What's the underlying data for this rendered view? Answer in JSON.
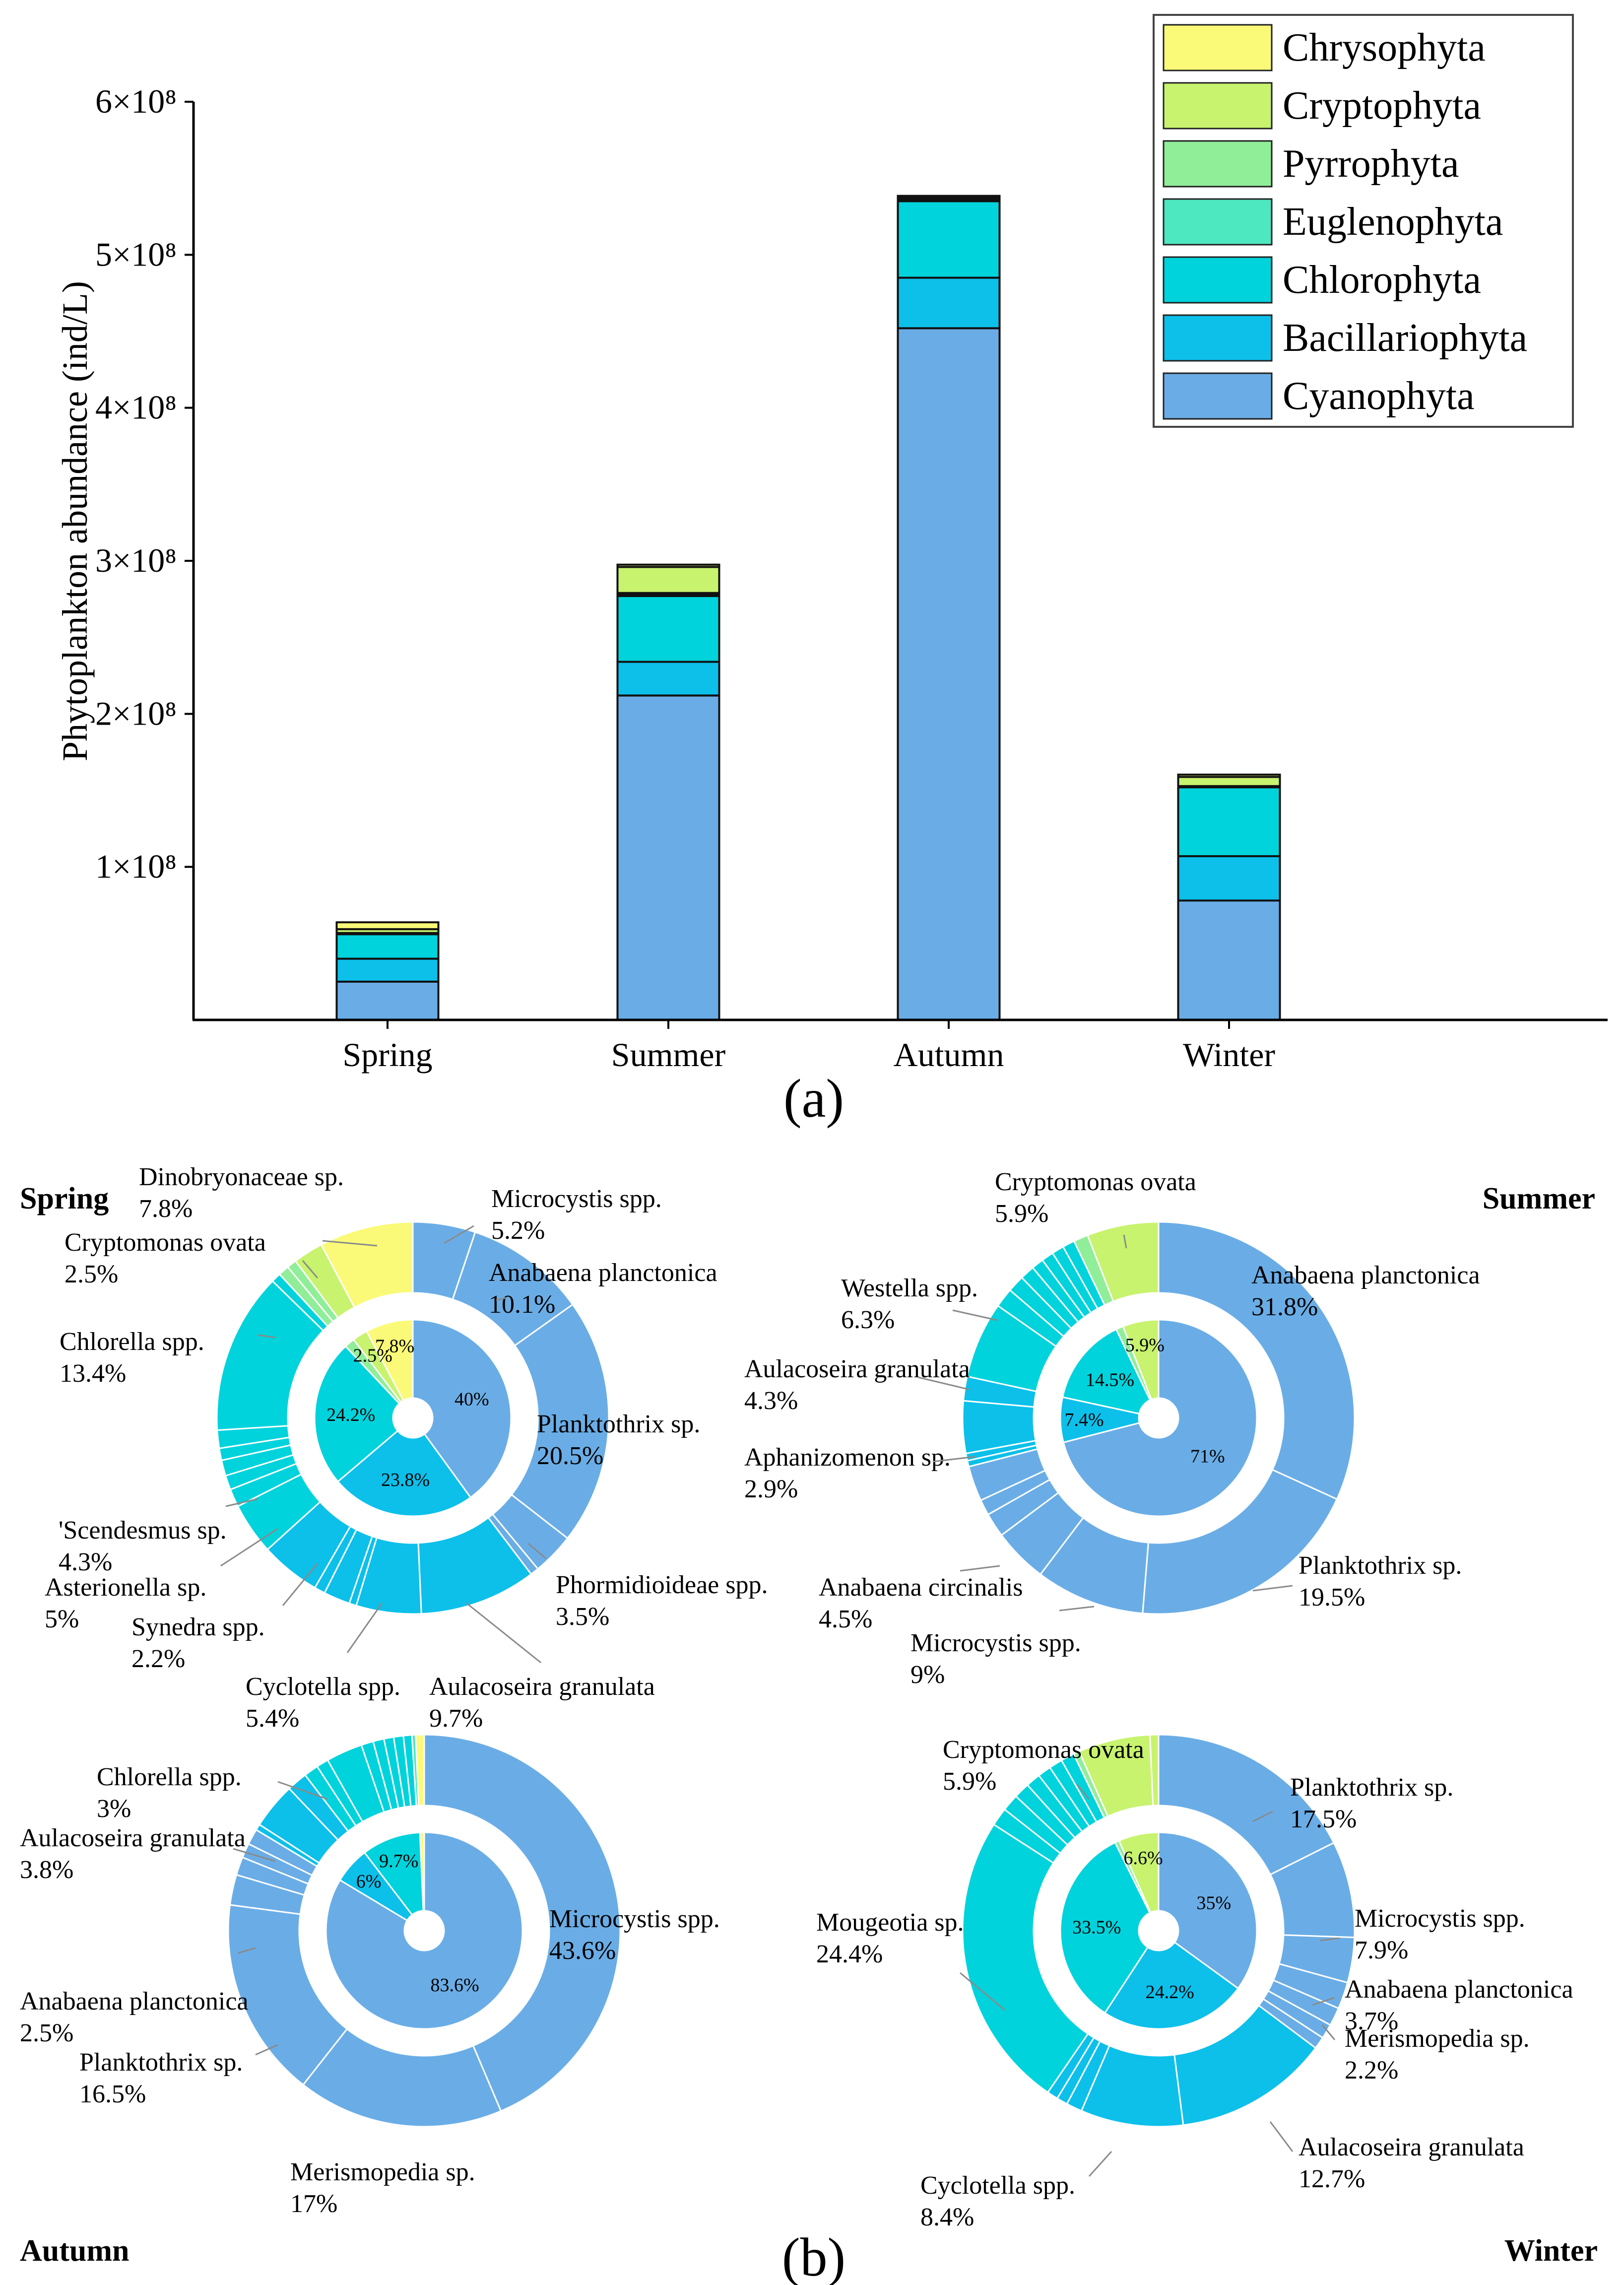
{
  "chart_data": [
    {
      "id": "a",
      "type": "bar",
      "stacked": true,
      "panel_label": "(a)",
      "ylabel": "Phytoplankton abundance (ind/L)",
      "xlabel": "",
      "categories": [
        "Spring",
        "Summer",
        "Autumn",
        "Winter"
      ],
      "ylim": [
        0,
        600000000
      ],
      "yticks": [
        {
          "value": 100000000,
          "label": "1×10⁸"
        },
        {
          "value": 200000000,
          "label": "2×10⁸"
        },
        {
          "value": 300000000,
          "label": "3×10⁸"
        },
        {
          "value": 400000000,
          "label": "4×10⁸"
        },
        {
          "value": 500000000,
          "label": "5×10⁸"
        },
        {
          "value": 600000000,
          "label": "6×10⁸"
        }
      ],
      "legend_position": "top-right",
      "series": [
        {
          "name": "Cyanophyta",
          "color": "#6aade6",
          "values": [
            25000000,
            212000000,
            452000000,
            78000000
          ]
        },
        {
          "name": "Bacillariophyta",
          "color": "#0cc0ea",
          "values": [
            15000000,
            22000000,
            33000000,
            29000000
          ]
        },
        {
          "name": "Chlorophyta",
          "color": "#00d3dc",
          "values": [
            16000000,
            43000000,
            50000000,
            45000000
          ]
        },
        {
          "name": "Euglenophyta",
          "color": "#4de8c0",
          "values": [
            500000,
            1000000,
            800000,
            500000
          ]
        },
        {
          "name": "Pyrrophyta",
          "color": "#90ee98",
          "values": [
            300000,
            1000000,
            500000,
            300000
          ]
        },
        {
          "name": "Cryptophyta",
          "color": "#c8f36e",
          "values": [
            2500000,
            17000000,
            1200000,
            6000000
          ]
        },
        {
          "name": "Chrysophyta",
          "color": "#fafa78",
          "values": [
            4500000,
            1500000,
            1000000,
            1500000
          ]
        }
      ]
    },
    {
      "id": "b",
      "type": "pie",
      "subtype": "nested-donut",
      "panel_label": "(b)",
      "charts": [
        {
          "season": "Spring",
          "inner": [
            {
              "value": 40,
              "label": "40%",
              "color": "#6aade6"
            },
            {
              "value": 23.8,
              "label": "23.8%",
              "color": "#0cc0ea"
            },
            {
              "value": 24.2,
              "label": "24.2%",
              "color": "#00d3dc"
            },
            {
              "value": 1.7,
              "label": "",
              "color": "#90ee98"
            },
            {
              "value": 2.5,
              "label": "2.5%",
              "color": "#c8f36e"
            },
            {
              "value": 7.8,
              "label": "7.8%",
              "color": "#fafa78"
            }
          ],
          "outer": [
            {
              "value": 5.2,
              "color": "#6aade6"
            },
            {
              "value": 10.1,
              "color": "#6aade6"
            },
            {
              "value": 20.5,
              "color": "#6aade6"
            },
            {
              "value": 3.5,
              "color": "#6aade6"
            },
            {
              "value": 0.7,
              "color": "#6aade6"
            },
            {
              "value": 9.7,
              "color": "#0cc0ea"
            },
            {
              "value": 5.4,
              "color": "#0cc0ea"
            },
            {
              "value": 0.6,
              "color": "#0cc0ea"
            },
            {
              "value": 2.2,
              "color": "#0cc0ea"
            },
            {
              "value": 0.9,
              "color": "#0cc0ea"
            },
            {
              "value": 5,
              "color": "#0cc0ea"
            },
            {
              "value": 4.3,
              "color": "#00d3dc"
            },
            {
              "value": 1.5,
              "color": "#00d3dc"
            },
            {
              "value": 1.2,
              "color": "#00d3dc"
            },
            {
              "value": 1.3,
              "color": "#00d3dc"
            },
            {
              "value": 1.0,
              "color": "#00d3dc"
            },
            {
              "value": 1.5,
              "color": "#00d3dc"
            },
            {
              "value": 13.4,
              "color": "#00d3dc"
            },
            {
              "value": 0.8,
              "color": "#00d3dc"
            },
            {
              "value": 0.9,
              "color": "#90ee98"
            },
            {
              "value": 0.8,
              "color": "#90ee98"
            },
            {
              "value": 2.5,
              "color": "#c8f36e"
            },
            {
              "value": 7.8,
              "color": "#fafa78"
            }
          ],
          "annotations": [
            {
              "name": "Dinobryonaceae sp.",
              "pct": "7.8%"
            },
            {
              "name": "Cryptomonas ovata",
              "pct": "2.5%"
            },
            {
              "name": "Chlorella spp.",
              "pct": "13.4%"
            },
            {
              "name": "'Scendesmus sp.",
              "pct": "4.3%"
            },
            {
              "name": "Asterionella sp.",
              "pct": "5%"
            },
            {
              "name": "Synedra spp.",
              "pct": "2.2%"
            },
            {
              "name": "Cyclotella spp.",
              "pct": "5.4%"
            },
            {
              "name": "Aulacoseira granulata",
              "pct": "9.7%"
            },
            {
              "name": "Phormidioideae spp.",
              "pct": "3.5%"
            },
            {
              "name": "Planktothrix sp.",
              "pct": "20.5%"
            },
            {
              "name": "Anabaena planctonica",
              "pct": "10.1%"
            },
            {
              "name": "Microcystis spp.",
              "pct": "5.2%"
            }
          ]
        },
        {
          "season": "Summer",
          "inner": [
            {
              "value": 71,
              "label": "71%",
              "color": "#6aade6"
            },
            {
              "value": 7.4,
              "label": "7.4%",
              "color": "#0cc0ea"
            },
            {
              "value": 14.5,
              "label": "14.5%",
              "color": "#00d3dc"
            },
            {
              "value": 1.2,
              "label": "",
              "color": "#90ee98"
            },
            {
              "value": 5.9,
              "label": "5.9%",
              "color": "#c8f36e"
            }
          ],
          "outer": [
            {
              "value": 31.8,
              "color": "#6aade6"
            },
            {
              "value": 19.5,
              "color": "#6aade6"
            },
            {
              "value": 9,
              "color": "#6aade6"
            },
            {
              "value": 4.5,
              "color": "#6aade6"
            },
            {
              "value": 2.0,
              "color": "#6aade6"
            },
            {
              "value": 1.3,
              "color": "#6aade6"
            },
            {
              "value": 2.9,
              "color": "#6aade6"
            },
            {
              "value": 0.5,
              "color": "#0cc0ea"
            },
            {
              "value": 0.6,
              "color": "#0cc0ea"
            },
            {
              "value": 4.3,
              "color": "#0cc0ea"
            },
            {
              "value": 2.0,
              "color": "#0cc0ea"
            },
            {
              "value": 6.3,
              "color": "#00d3dc"
            },
            {
              "value": 1.6,
              "color": "#00d3dc"
            },
            {
              "value": 1.4,
              "color": "#00d3dc"
            },
            {
              "value": 1.2,
              "color": "#00d3dc"
            },
            {
              "value": 1.0,
              "color": "#00d3dc"
            },
            {
              "value": 1.0,
              "color": "#00d3dc"
            },
            {
              "value": 1.0,
              "color": "#00d3dc"
            },
            {
              "value": 1.0,
              "color": "#00d3dc"
            },
            {
              "value": 1.2,
              "color": "#90ee98"
            },
            {
              "value": 5.9,
              "color": "#c8f36e"
            }
          ],
          "annotations": [
            {
              "name": "Cryptomonas ovata",
              "pct": "5.9%"
            },
            {
              "name": "Westella spp.",
              "pct": "6.3%"
            },
            {
              "name": "Aulacoseira granulata",
              "pct": "4.3%"
            },
            {
              "name": "Aphanizomenon sp.",
              "pct": "2.9%"
            },
            {
              "name": "Anabaena circinalis",
              "pct": "4.5%"
            },
            {
              "name": "Microcystis spp.",
              "pct": "9%"
            },
            {
              "name": "Planktothrix sp.",
              "pct": "19.5%"
            },
            {
              "name": "Anabaena planctonica",
              "pct": "31.8%"
            }
          ]
        },
        {
          "season": "Autumn",
          "inner": [
            {
              "value": 83.6,
              "label": "83.6%",
              "color": "#6aade6"
            },
            {
              "value": 6,
              "label": "6%",
              "color": "#0cc0ea"
            },
            {
              "value": 9.7,
              "label": "9.7%",
              "color": "#00d3dc"
            },
            {
              "value": 0.7,
              "label": "",
              "color": "#fafa78"
            }
          ],
          "outer": [
            {
              "value": 43.6,
              "color": "#6aade6"
            },
            {
              "value": 17,
              "color": "#6aade6"
            },
            {
              "value": 16.5,
              "color": "#6aade6"
            },
            {
              "value": 2.5,
              "color": "#6aade6"
            },
            {
              "value": 1.5,
              "color": "#6aade6"
            },
            {
              "value": 1.2,
              "color": "#6aade6"
            },
            {
              "value": 1.3,
              "color": "#6aade6"
            },
            {
              "value": 0.5,
              "color": "#0cc0ea"
            },
            {
              "value": 3.8,
              "color": "#0cc0ea"
            },
            {
              "value": 1.7,
              "color": "#0cc0ea"
            },
            {
              "value": 1.2,
              "color": "#00d3dc"
            },
            {
              "value": 1.0,
              "color": "#00d3dc"
            },
            {
              "value": 3,
              "color": "#00d3dc"
            },
            {
              "value": 1.0,
              "color": "#00d3dc"
            },
            {
              "value": 0.9,
              "color": "#00d3dc"
            },
            {
              "value": 0.8,
              "color": "#00d3dc"
            },
            {
              "value": 0.8,
              "color": "#00d3dc"
            },
            {
              "value": 0.7,
              "color": "#00d3dc"
            },
            {
              "value": 0.3,
              "color": "#4de8c0"
            },
            {
              "value": 0.7,
              "color": "#fafa78"
            }
          ],
          "annotations": [
            {
              "name": "Chlorella spp.",
              "pct": "3%"
            },
            {
              "name": "Aulacoseira granulata",
              "pct": "3.8%"
            },
            {
              "name": "Anabaena planctonica",
              "pct": "2.5%"
            },
            {
              "name": "Planktothrix sp.",
              "pct": "16.5%"
            },
            {
              "name": "Merismopedia sp.",
              "pct": "17%"
            },
            {
              "name": "Microcystis spp.",
              "pct": "43.6%"
            }
          ]
        },
        {
          "season": "Winter",
          "inner": [
            {
              "value": 35,
              "label": "35%",
              "color": "#6aade6"
            },
            {
              "value": 24.2,
              "label": "24.2%",
              "color": "#0cc0ea"
            },
            {
              "value": 33.5,
              "label": "33.5%",
              "color": "#00d3dc"
            },
            {
              "value": 0.7,
              "label": "",
              "color": "#90ee98"
            },
            {
              "value": 6.6,
              "label": "6.6%",
              "color": "#c8f36e"
            }
          ],
          "outer": [
            {
              "value": 17.5,
              "color": "#6aade6"
            },
            {
              "value": 7.9,
              "color": "#6aade6"
            },
            {
              "value": 3.7,
              "color": "#6aade6"
            },
            {
              "value": 2.2,
              "color": "#6aade6"
            },
            {
              "value": 1.5,
              "color": "#6aade6"
            },
            {
              "value": 1.2,
              "color": "#6aade6"
            },
            {
              "value": 1.0,
              "color": "#6aade6"
            },
            {
              "value": 12.7,
              "color": "#0cc0ea"
            },
            {
              "value": 8.4,
              "color": "#0cc0ea"
            },
            {
              "value": 1.3,
              "color": "#0cc0ea"
            },
            {
              "value": 0.9,
              "color": "#0cc0ea"
            },
            {
              "value": 0.9,
              "color": "#0cc0ea"
            },
            {
              "value": 24.4,
              "color": "#00d3dc"
            },
            {
              "value": 1.5,
              "color": "#00d3dc"
            },
            {
              "value": 1.4,
              "color": "#00d3dc"
            },
            {
              "value": 1.3,
              "color": "#00d3dc"
            },
            {
              "value": 1.2,
              "color": "#00d3dc"
            },
            {
              "value": 1.1,
              "color": "#00d3dc"
            },
            {
              "value": 1.1,
              "color": "#00d3dc"
            },
            {
              "value": 1.1,
              "color": "#00d3dc"
            },
            {
              "value": 0.5,
              "color": "#90ee98"
            },
            {
              "value": 5.9,
              "color": "#c8f36e"
            },
            {
              "value": 0.7,
              "color": "#c8f36e"
            }
          ],
          "annotations": [
            {
              "name": "Cryptomonas ovata",
              "pct": "5.9%"
            },
            {
              "name": "Planktothrix sp.",
              "pct": "17.5%"
            },
            {
              "name": "Microcystis spp.",
              "pct": "7.9%"
            },
            {
              "name": "Anabaena planctonica",
              "pct": "3.7%"
            },
            {
              "name": "Merismopedia sp.",
              "pct": "2.2%"
            },
            {
              "name": "Aulacoseira granulata",
              "pct": "12.7%"
            },
            {
              "name": "Cyclotella spp.",
              "pct": "8.4%"
            },
            {
              "name": "Mougeotia sp.",
              "pct": "24.4%"
            }
          ]
        }
      ]
    }
  ]
}
